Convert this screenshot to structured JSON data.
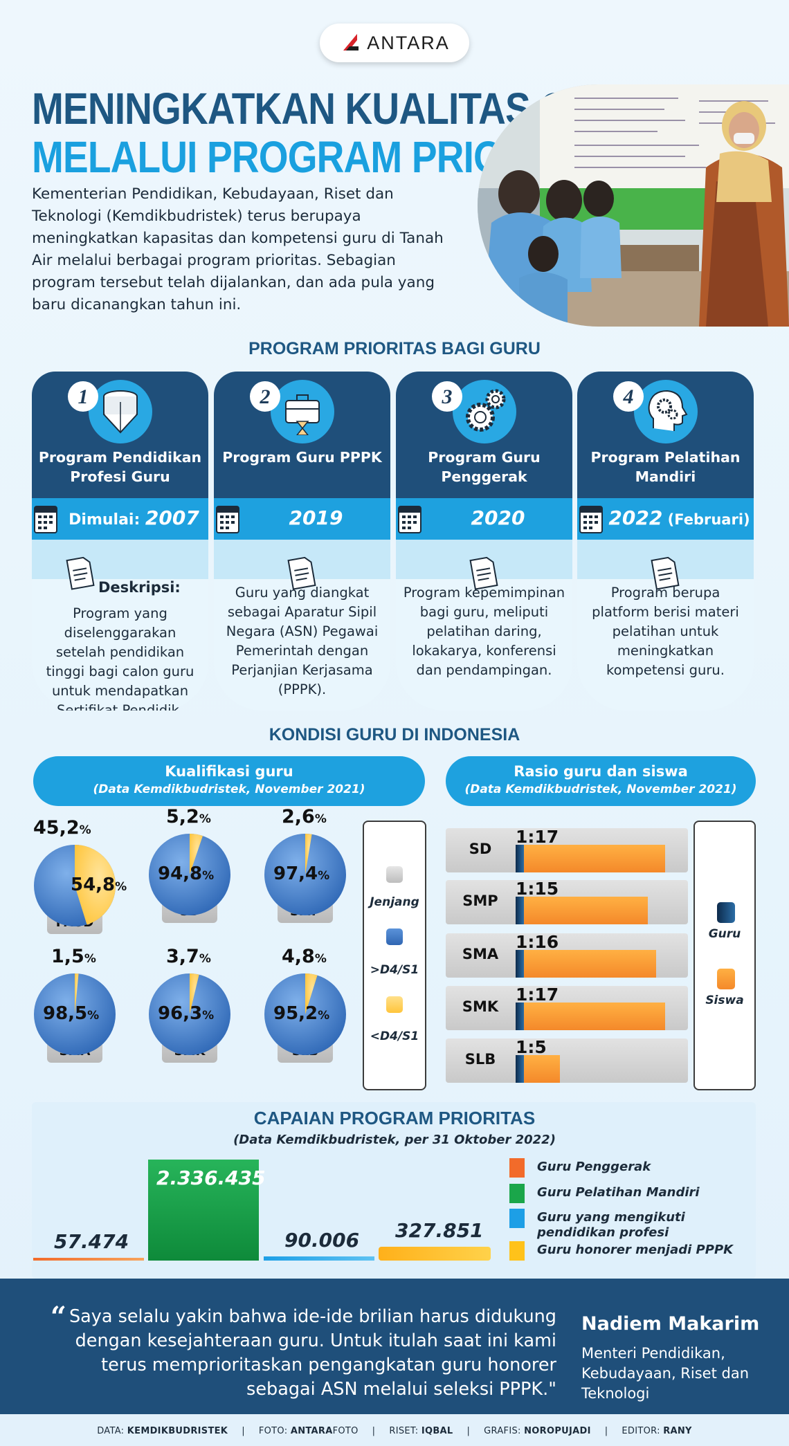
{
  "brand": {
    "logo_text": "ANTARA"
  },
  "title": {
    "line1": "MENINGKATKAN KUALITAS GURU",
    "line2": "MELALUI PROGRAM PRIORITAS"
  },
  "intro": "Kementerian Pendidikan, Kebudayaan, Riset dan Teknologi (Kemdikbudristek) terus berupaya meningkatkan kapasitas dan kompetensi guru di Tanah Air melalui berbagai program prioritas. Sebagian program tersebut telah dijalankan, dan ada pula yang baru dicanangkan tahun ini.",
  "programs_section": {
    "title": "PROGRAM PRIORITAS BAGI GURU",
    "start_label": "Dimulai:",
    "desc_label": "Deskripsi:",
    "items": [
      {
        "number": "1",
        "name": "Program Pendidikan Profesi Guru",
        "year": "2007",
        "year_note": "",
        "icon": "graduation-cap-icon",
        "desc": "Program yang diselenggarakan setelah pendidikan tinggi bagi calon guru untuk mendapatkan Sertifikat Pendidik."
      },
      {
        "number": "2",
        "name": "Program Guru PPPK",
        "year": "2019",
        "year_note": "",
        "icon": "briefcase-hourglass-icon",
        "desc": "Guru yang diangkat sebagai Aparatur Sipil Negara (ASN) Pegawai Pemerintah dengan Perjanjian Kerjasama (PPPK)."
      },
      {
        "number": "3",
        "name": "Program Guru Penggerak",
        "year": "2020",
        "year_note": "",
        "icon": "gears-icon",
        "desc": "Program kepemimpinan bagi guru, meliputi pelatihan daring, lokakarya, konferensi dan pendampingan."
      },
      {
        "number": "4",
        "name": "Program Pelatihan Mandiri",
        "year": "2022",
        "year_note": "(Februari)",
        "icon": "head-gears-icon",
        "desc": "Program berupa platform berisi materi pelatihan untuk meningkatkan kompetensi guru."
      }
    ]
  },
  "kondisi_section": {
    "title": "KONDISI GURU DI INDONESIA"
  },
  "colors": {
    "dark_blue": "#1f4f7a",
    "light_blue": "#1ea1df",
    "pie_blue": "#3f7fcf",
    "pie_yellow": "#ffd45a",
    "orange": "#f4892a",
    "green": "#1aa64a"
  },
  "chart_data": [
    {
      "type": "pie",
      "title": "Kualifikasi guru",
      "subtitle": "(Data Kemdikbudristek, November 2021)",
      "legend": {
        "category": "Jenjang",
        "series": [
          ">D4/S1",
          "<D4/S1"
        ]
      },
      "unit": "%",
      "pies": [
        {
          "label": "PAUD",
          "above": 54.8,
          "below": 45.2,
          "above_text": "54,8",
          "below_text": "45,2"
        },
        {
          "label": "SD",
          "above": 94.8,
          "below": 5.2,
          "above_text": "94,8",
          "below_text": "5,2"
        },
        {
          "label": "SMP",
          "above": 97.4,
          "below": 2.6,
          "above_text": "97,4",
          "below_text": "2,6"
        },
        {
          "label": "SMA",
          "above": 98.5,
          "below": 1.5,
          "above_text": "98,5",
          "below_text": "1,5"
        },
        {
          "label": "SMK",
          "above": 96.3,
          "below": 3.7,
          "above_text": "96,3",
          "below_text": "3,7"
        },
        {
          "label": "SLB",
          "above": 95.2,
          "below": 4.8,
          "above_text": "95,2",
          "below_text": "4,8"
        }
      ]
    },
    {
      "type": "bar",
      "title": "Rasio guru dan siswa",
      "subtitle": "(Data Kemdikbudristek, November 2021)",
      "legend": [
        "Guru",
        "Siswa"
      ],
      "categories": [
        "SD",
        "SMP",
        "SMA",
        "SMK",
        "SLB"
      ],
      "ratio_labels": [
        "1:17",
        "1:15",
        "1:16",
        "1:17",
        "1:5"
      ],
      "series": [
        {
          "name": "Guru",
          "values": [
            1,
            1,
            1,
            1,
            1
          ]
        },
        {
          "name": "Siswa",
          "values": [
            17,
            15,
            16,
            17,
            5
          ]
        }
      ]
    },
    {
      "type": "bar",
      "title": "CAPAIAN PROGRAM PRIORITAS",
      "subtitle": "(Data Kemdikbudristek, per 31 Oktober 2022)",
      "categories": [
        "Guru Penggerak",
        "Guru Pelatihan Mandiri",
        "Guru yang mengikuti pendidikan profesi",
        "Guru honorer menjadi PPPK"
      ],
      "values": [
        57474,
        2336435,
        90006,
        327851
      ],
      "value_labels": [
        "57.474",
        "2.336.435",
        "90.006",
        "327.851"
      ],
      "colors": [
        "#f26b2a",
        "#1aa64a",
        "#1d9fe6",
        "#ffc21a"
      ]
    }
  ],
  "quote": {
    "text": "Saya selalu yakin bahwa ide-ide brilian harus didukung dengan kesejahteraan guru. Untuk itulah saat ini kami terus memprioritaskan pengangkatan guru honorer sebagai ASN melalui seleksi PPPK.\"",
    "name": "Nadiem Makarim",
    "role": "Menteri Pendidikan, Kebudayaan, Riset dan Teknologi"
  },
  "credits": [
    {
      "label": "DATA: ",
      "value": "KEMDIKBUDRISTEK"
    },
    {
      "label": "FOTO: ",
      "value": "ANTARA",
      "suffix": "FOTO"
    },
    {
      "label": "RISET: ",
      "value": "IQBAL"
    },
    {
      "label": "GRAFIS: ",
      "value": "NOROPUJADI"
    },
    {
      "label": "EDITOR: ",
      "value": "RANY"
    }
  ]
}
